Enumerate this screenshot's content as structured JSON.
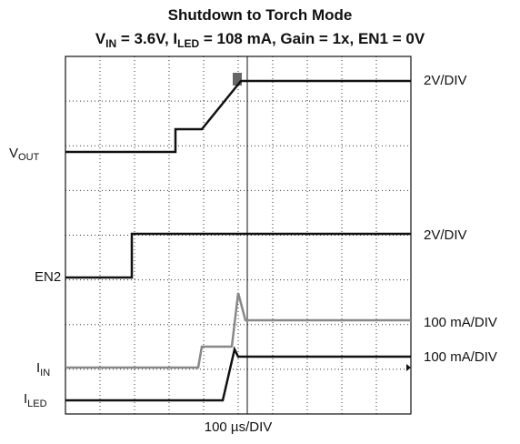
{
  "title": "Shutdown to Torch Mode",
  "subtitle": [
    "V",
    "IN",
    " = 3.6V, I",
    "LED",
    " = 108 mA, Gain = 1x, EN1 = 0V"
  ],
  "channels": [
    {
      "label": [
        "V",
        "OUT"
      ],
      "scale": "2V/DIV"
    },
    {
      "label": [
        "EN2"
      ],
      "scale": "2V/DIV"
    },
    {
      "label": [
        "I",
        "IN"
      ],
      "scale": "100 mA/DIV"
    },
    {
      "label": [
        "I",
        "LED"
      ],
      "scale": "100 mA/DIV"
    }
  ],
  "time_scale": "100 µs/DIV"
}
